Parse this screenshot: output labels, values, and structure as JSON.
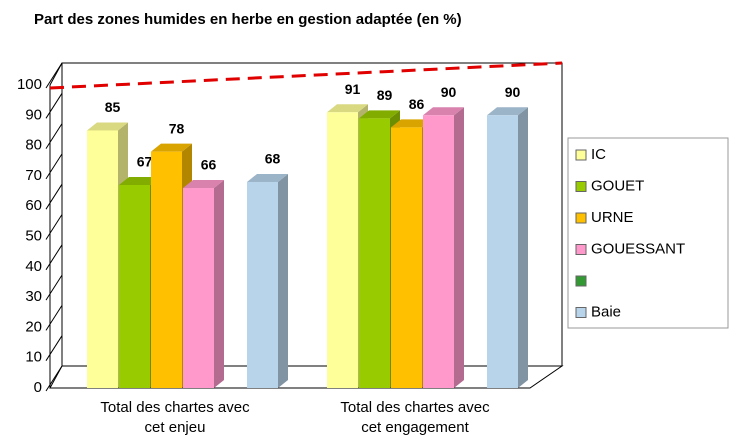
{
  "chart_data": {
    "type": "bar3d",
    "title": "Part des zones humides en herbe en gestion adaptée (en %)",
    "categories": [
      "Total des chartes avec cet enjeu",
      "Total des chartes avec cet engagement"
    ],
    "series": [
      {
        "name": "IC",
        "color": "#ffff99",
        "values": [
          85,
          91
        ]
      },
      {
        "name": "GOUET",
        "color": "#99cc00",
        "values": [
          67,
          89
        ]
      },
      {
        "name": "URNE",
        "color": "#ffc000",
        "values": [
          78,
          86
        ]
      },
      {
        "name": "GOUESSANT",
        "color": "#ff99cc",
        "values": [
          66,
          90
        ]
      },
      {
        "color": "#339933",
        "values": [
          null,
          null
        ]
      },
      {
        "name": "Baie",
        "color": "#b8d4ea",
        "values": [
          68,
          90
        ]
      }
    ],
    "ylim": [
      0,
      100
    ],
    "yticks": [
      0,
      10,
      20,
      30,
      40,
      50,
      60,
      70,
      80,
      90,
      100
    ],
    "reference_line": {
      "value": 100,
      "color": "#e00000"
    },
    "legend": "right"
  }
}
